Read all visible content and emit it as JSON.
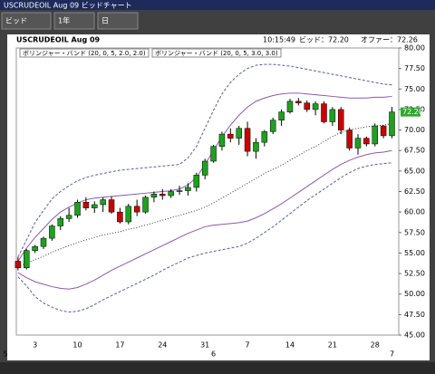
{
  "window": {
    "title": "USCRUDEOIL Aug 09 ビッドチャート",
    "buttons": [
      "ビッド",
      "1年",
      "日"
    ]
  },
  "header": {
    "symbol": "USCRUDEOIL Aug 09",
    "time": "10:15:49",
    "bid": "ビッド：72.20",
    "offer": "オファー：72.26"
  },
  "chart_data": {
    "type": "candlestick",
    "categories": [
      null,
      null,
      "3",
      null,
      null,
      null,
      null,
      "10",
      null,
      null,
      null,
      null,
      "17",
      null,
      null,
      null,
      null,
      "24",
      null,
      null,
      null,
      null,
      "31",
      null,
      null,
      null,
      null,
      "7",
      null,
      null,
      null,
      null,
      "14",
      null,
      null,
      null,
      null,
      "21",
      null,
      null,
      null,
      null,
      "28",
      null,
      null
    ],
    "months": [
      "5",
      null,
      null,
      null,
      null,
      null,
      null,
      null,
      null,
      null,
      null,
      null,
      null,
      null,
      null,
      null,
      null,
      null,
      null,
      null,
      null,
      null,
      null,
      "6",
      null,
      null,
      null,
      null,
      null,
      null,
      null,
      null,
      null,
      null,
      null,
      null,
      null,
      null,
      null,
      null,
      null,
      null,
      null,
      null,
      "7"
    ],
    "open": [
      54.0,
      53.2,
      55.3,
      55.8,
      56.8,
      58.3,
      59.2,
      59.6,
      61.2,
      60.5,
      60.9,
      61.5,
      60.0,
      58.8,
      60.7,
      60.0,
      61.8,
      62.2,
      62.0,
      62.5,
      62.6,
      63.0,
      64.5,
      66.2,
      68.0,
      69.5,
      69.0,
      70.2,
      67.4,
      68.5,
      69.8,
      71.2,
      72.2,
      73.5,
      73.3,
      72.5,
      73.2,
      71.0,
      72.5,
      70.0,
      67.8,
      69.0,
      68.3,
      70.5,
      69.3
    ],
    "high": [
      54.5,
      55.5,
      56.0,
      57.0,
      58.5,
      59.5,
      60.5,
      61.5,
      61.8,
      61.3,
      61.8,
      61.9,
      60.5,
      61.0,
      61.5,
      62.0,
      62.5,
      62.8,
      62.8,
      63.2,
      63.5,
      64.8,
      66.5,
      68.2,
      69.8,
      70.2,
      70.5,
      71.0,
      69.0,
      70.0,
      71.5,
      72.5,
      73.8,
      73.9,
      73.6,
      73.5,
      73.5,
      72.8,
      72.8,
      70.3,
      69.5,
      69.2,
      70.8,
      70.6,
      72.8
    ],
    "low": [
      52.9,
      53.0,
      55.0,
      55.5,
      56.5,
      57.8,
      58.8,
      59.3,
      60.2,
      59.9,
      60.0,
      59.8,
      58.6,
      58.5,
      59.5,
      59.8,
      61.2,
      61.5,
      61.7,
      62.1,
      62.0,
      62.5,
      64.0,
      66.0,
      67.5,
      68.5,
      68.2,
      66.8,
      66.5,
      68.0,
      69.5,
      70.5,
      72.0,
      73.0,
      72.2,
      71.8,
      70.8,
      70.5,
      69.5,
      67.5,
      67.0,
      68.0,
      68.0,
      69.0,
      69.0
    ],
    "close": [
      53.2,
      55.3,
      55.8,
      56.8,
      58.3,
      59.2,
      59.6,
      61.2,
      60.5,
      60.9,
      61.5,
      60.0,
      58.8,
      60.7,
      60.0,
      61.8,
      62.2,
      62.0,
      62.5,
      62.6,
      63.0,
      64.5,
      66.2,
      68.0,
      69.5,
      69.0,
      70.2,
      67.4,
      68.5,
      69.8,
      71.2,
      72.2,
      73.5,
      73.3,
      72.5,
      73.2,
      71.0,
      72.5,
      70.0,
      67.8,
      69.0,
      68.3,
      70.5,
      69.3,
      72.2
    ],
    "up_color": "#1fa01f",
    "down_color": "#cc0000",
    "middle": [
      53.3,
      53.8,
      54.2,
      54.6,
      55.1,
      55.5,
      55.9,
      56.3,
      56.6,
      56.9,
      57.2,
      57.4,
      57.6,
      57.9,
      58.1,
      58.4,
      58.7,
      59.0,
      59.3,
      59.6,
      59.9,
      60.2,
      60.6,
      61.1,
      61.7,
      62.3,
      62.9,
      63.5,
      64.1,
      64.7,
      65.2,
      65.7,
      66.3,
      66.9,
      67.5,
      68.0,
      68.6,
      69.2,
      69.7,
      70.0,
      70.2,
      70.4,
      70.5,
      70.6,
      70.8
    ],
    "bands": [
      {
        "name": "ボリンジャー・バンド (20, 0, 5, 2.0, 2.0)",
        "color": "#8a5aa8",
        "dashed": false,
        "upper": [
          54.0,
          55.6,
          56.9,
          58.0,
          59.1,
          60.0,
          60.6,
          61.1,
          61.5,
          61.7,
          61.8,
          61.9,
          62.0,
          62.1,
          62.2,
          62.3,
          62.4,
          62.5,
          62.6,
          62.8,
          63.3,
          64.2,
          65.8,
          67.5,
          69.2,
          70.6,
          71.8,
          72.8,
          73.5,
          73.9,
          74.2,
          74.4,
          74.5,
          74.5,
          74.4,
          74.3,
          74.2,
          74.1,
          74.0,
          73.9,
          73.9,
          73.9,
          74.0,
          74.0,
          74.1
        ],
        "lower": [
          52.6,
          52.0,
          51.5,
          51.2,
          50.9,
          50.7,
          50.6,
          50.8,
          51.2,
          51.7,
          52.3,
          52.9,
          53.4,
          53.9,
          54.4,
          54.9,
          55.4,
          55.9,
          56.4,
          56.9,
          57.4,
          57.8,
          58.2,
          58.4,
          58.5,
          58.6,
          58.7,
          58.9,
          59.3,
          59.8,
          60.4,
          61.0,
          61.7,
          62.4,
          63.1,
          63.8,
          64.5,
          65.2,
          65.8,
          66.3,
          66.7,
          67.0,
          67.2,
          67.3,
          67.5
        ]
      },
      {
        "name": "ボリンジャー・バンド (20, 0, 5, 3.0, 3.0)",
        "color": "#5a5aa0",
        "dashed": true,
        "upper": [
          54.5,
          56.6,
          58.7,
          60.2,
          61.6,
          62.5,
          63.2,
          63.8,
          64.2,
          64.5,
          64.7,
          64.9,
          65.1,
          65.2,
          65.3,
          65.4,
          65.5,
          65.6,
          65.7,
          65.8,
          66.6,
          68.0,
          70.2,
          72.4,
          74.4,
          75.8,
          76.8,
          77.5,
          77.9,
          78.0,
          78.0,
          77.9,
          77.8,
          77.6,
          77.4,
          77.2,
          77.0,
          76.8,
          76.6,
          76.4,
          76.2,
          76.0,
          75.8,
          75.6,
          75.5
        ],
        "lower": [
          52.1,
          51.0,
          49.7,
          48.9,
          48.4,
          48.0,
          47.8,
          47.9,
          48.2,
          48.7,
          49.3,
          49.8,
          50.3,
          50.8,
          51.3,
          51.8,
          52.3,
          52.9,
          53.4,
          53.9,
          54.4,
          54.7,
          55.0,
          55.2,
          55.4,
          55.6,
          55.8,
          56.2,
          56.8,
          57.5,
          58.2,
          59.0,
          59.8,
          60.6,
          61.4,
          62.1,
          62.8,
          63.5,
          64.2,
          64.8,
          65.3,
          65.6,
          65.8,
          65.9,
          66.0
        ]
      }
    ],
    "last_price": {
      "value": 72.2,
      "label": "72.20"
    },
    "ylim": [
      45,
      80
    ],
    "yticks": [
      {
        "value": 45,
        "label": "45.00"
      },
      {
        "value": 47.5,
        "label": "47.50"
      },
      {
        "value": 50,
        "label": "50.00"
      },
      {
        "value": 52.5,
        "label": "52.50"
      },
      {
        "value": 55,
        "label": "55.00"
      },
      {
        "value": 57.5,
        "label": "57.50"
      },
      {
        "value": 60,
        "label": "60.00"
      },
      {
        "value": 62.5,
        "label": "62.50"
      },
      {
        "value": 65,
        "label": "65.00"
      },
      {
        "value": 67.5,
        "label": "67.50"
      },
      {
        "value": 70,
        "label": "70.00"
      },
      {
        "value": 72.5,
        "label": "72.50"
      },
      {
        "value": 75,
        "label": "75.00"
      },
      {
        "value": 77.5,
        "label": "77.50"
      },
      {
        "value": 80,
        "label": "80.00"
      }
    ]
  }
}
